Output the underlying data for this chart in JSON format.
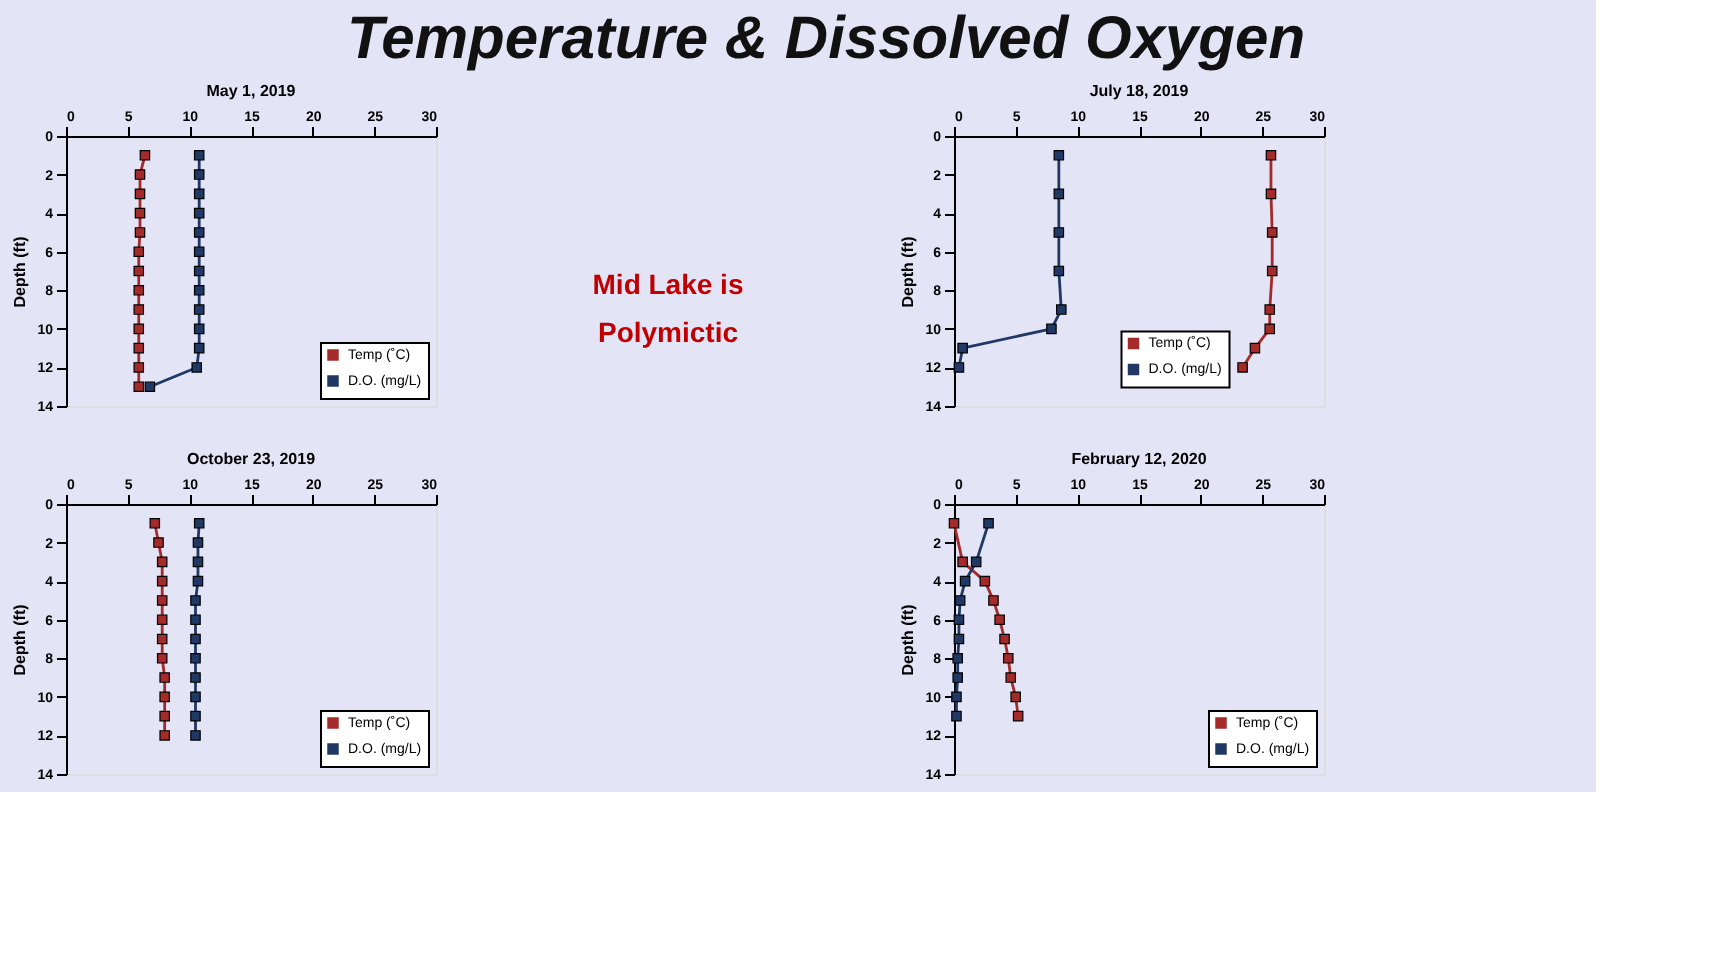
{
  "chart_data": [
    {
      "type": "other",
      "title": "Temperature & Dissolved Oxygen",
      "annotations": [
        "Mid Lake is Polymictic"
      ]
    },
    {
      "type": "line",
      "title": "May 1, 2019",
      "ylabel": "Depth (ft)",
      "xlim": [
        0,
        30
      ],
      "xticks": [
        0,
        5,
        10,
        15,
        20,
        25,
        30
      ],
      "ylim": [
        14,
        0
      ],
      "yticks": [
        0,
        2,
        4,
        6,
        8,
        10,
        12,
        14
      ],
      "grid": false,
      "legend": "bottom right",
      "marker": "square",
      "line_style": "solid",
      "series": [
        {
          "name": "Temp (˚C)",
          "color": "#a52a2a",
          "x": [
            6.4,
            6.0,
            6.0,
            6.0,
            6.0,
            5.9,
            5.9,
            5.9,
            5.9,
            5.9,
            5.9,
            5.9,
            5.9
          ],
          "values": [
            1,
            2,
            3,
            4,
            5,
            6,
            7,
            8,
            9,
            10,
            11,
            12,
            13
          ]
        },
        {
          "name": "D.O. (mg/L)",
          "color": "#1f3864",
          "x": [
            10.8,
            10.8,
            10.8,
            10.8,
            10.8,
            10.8,
            10.8,
            10.8,
            10.8,
            10.8,
            10.8,
            10.6,
            6.8
          ],
          "values": [
            1,
            2,
            3,
            4,
            5,
            6,
            7,
            8,
            9,
            10,
            11,
            12,
            13
          ]
        }
      ]
    },
    {
      "type": "line",
      "title": "July 18, 2019",
      "ylabel": "Depth (ft)",
      "xlim": [
        0,
        30
      ],
      "xticks": [
        0,
        5,
        10,
        15,
        20,
        25,
        30
      ],
      "ylim": [
        14,
        0
      ],
      "yticks": [
        0,
        2,
        4,
        6,
        8,
        10,
        12,
        14
      ],
      "grid": false,
      "legend": "bottom",
      "marker": "square",
      "line_style": "solid",
      "series": [
        {
          "name": "Temp (˚C)",
          "color": "#a52a2a",
          "x": [
            25.7,
            25.7,
            25.8,
            25.8,
            25.6,
            25.6,
            24.4,
            23.4
          ],
          "values": [
            1,
            3,
            5,
            7,
            9,
            10,
            11,
            12
          ]
        },
        {
          "name": "D.O. (mg/L)",
          "color": "#1f3864",
          "x": [
            8.5,
            8.5,
            8.5,
            8.5,
            8.7,
            7.9,
            0.7,
            0.4
          ],
          "values": [
            1,
            3,
            5,
            7,
            9,
            10,
            11,
            12
          ]
        }
      ]
    },
    {
      "type": "line",
      "title": "October 23, 2019",
      "ylabel": "Depth (ft)",
      "xlim": [
        0,
        30
      ],
      "xticks": [
        0,
        5,
        10,
        15,
        20,
        25,
        30
      ],
      "ylim": [
        14,
        0
      ],
      "yticks": [
        0,
        2,
        4,
        6,
        8,
        10,
        12,
        14
      ],
      "grid": false,
      "legend": "bottom right",
      "marker": "square",
      "line_style": "solid",
      "series": [
        {
          "name": "Temp (˚C)",
          "color": "#a52a2a",
          "x": [
            7.2,
            7.5,
            7.8,
            7.8,
            7.8,
            7.8,
            7.8,
            7.8,
            8.0,
            8.0,
            8.0,
            8.0
          ],
          "values": [
            1,
            2,
            3,
            4,
            5,
            6,
            7,
            8,
            9,
            10,
            11,
            12
          ]
        },
        {
          "name": "D.O. (mg/L)",
          "color": "#1f3864",
          "x": [
            10.8,
            10.7,
            10.7,
            10.7,
            10.5,
            10.5,
            10.5,
            10.5,
            10.5,
            10.5,
            10.5,
            10.5
          ],
          "values": [
            1,
            2,
            3,
            4,
            5,
            6,
            7,
            8,
            9,
            10,
            11,
            12
          ]
        }
      ]
    },
    {
      "type": "line",
      "title": "February 12, 2020",
      "ylabel": "Depth (ft)",
      "xlim": [
        0,
        30
      ],
      "xticks": [
        0,
        5,
        10,
        15,
        20,
        25,
        30
      ],
      "ylim": [
        14,
        0
      ],
      "yticks": [
        0,
        2,
        4,
        6,
        8,
        10,
        12,
        14
      ],
      "grid": false,
      "legend": "bottom right",
      "marker": "square",
      "line_style": "solid",
      "series": [
        {
          "name": "Temp (˚C)",
          "color": "#a52a2a",
          "x": [
            0.0,
            0.7,
            2.5,
            3.2,
            3.7,
            4.1,
            4.4,
            4.6,
            5.0,
            5.2
          ],
          "values": [
            1,
            3,
            4,
            5,
            6,
            7,
            8,
            9,
            10,
            11
          ]
        },
        {
          "name": "D.O. (mg/L)",
          "color": "#1f3864",
          "x": [
            2.8,
            1.8,
            0.9,
            0.5,
            0.4,
            0.4,
            0.3,
            0.3,
            0.2,
            0.2
          ],
          "values": [
            1,
            3,
            4,
            5,
            6,
            7,
            8,
            9,
            10,
            11
          ]
        }
      ]
    }
  ]
}
